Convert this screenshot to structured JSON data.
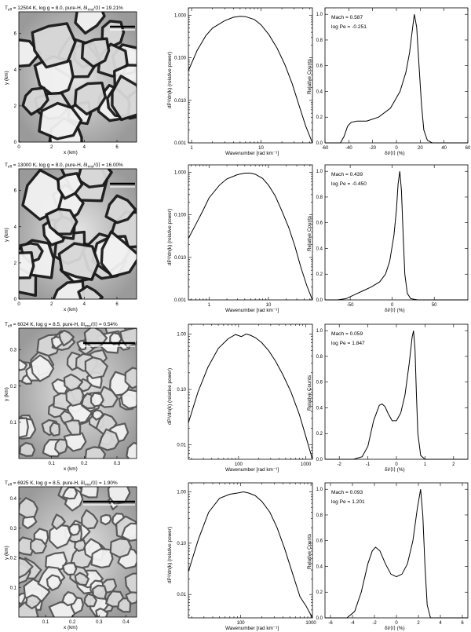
{
  "rows": [
    {
      "image": {
        "title_main": "T",
        "title_sub": "eff",
        "title_rest": " = 12504 K, log g = 8.0, pure-H, δI",
        "title_sub2": "rms",
        "title_end": "/⟨I⟩ = 19.21%",
        "xlabel": "x (km)",
        "ylabel": "y (km)",
        "x_ticks": [
          "0",
          "2",
          "4",
          "6"
        ],
        "y_ticks": [
          "0",
          "2",
          "4",
          "6"
        ]
      },
      "spectrum": {
        "ylabel": "dP²/dn(k) (relative power)",
        "xlabel": "Wavenumber [rad km⁻¹]",
        "y_ticks": [
          "0.001",
          "0.010",
          "0.100",
          "1.000"
        ],
        "x_ticks": [
          "1",
          "10"
        ]
      },
      "histogram": {
        "ylabel": "Relative Counts",
        "xlabel": "δI/⟨I⟩ (%)",
        "mach": "Mach = 0.587",
        "logpe": "log Pe = -0.251",
        "x_ticks": [
          "-60",
          "-40",
          "-20",
          "0",
          "20",
          "40",
          "60"
        ],
        "y_ticks": [
          "0.0",
          "0.2",
          "0.4",
          "0.6",
          "0.8",
          "1.0"
        ]
      }
    },
    {
      "image": {
        "title_main": "T",
        "title_sub": "eff",
        "title_rest": " = 13000 K, log g = 8.0, pure-H, δI",
        "title_sub2": "rms",
        "title_end": "/⟨I⟩ = 16.00%",
        "xlabel": "x (km)",
        "ylabel": "y (km)",
        "x_ticks": [
          "0",
          "2",
          "4",
          "6"
        ],
        "y_ticks": [
          "0",
          "2",
          "4",
          "6"
        ]
      },
      "spectrum": {
        "ylabel": "dP²/dn(k) (relative power)",
        "xlabel": "Wavenumber [rad km⁻¹]",
        "y_ticks": [
          "0.001",
          "0.010",
          "0.100",
          "1.000"
        ],
        "x_ticks": [
          "1",
          "10"
        ]
      },
      "histogram": {
        "ylabel": "Relative Counts",
        "xlabel": "δI/⟨I⟩ (%)",
        "mach": "Mach = 0.439",
        "logpe": "log Pe = -0.450",
        "x_ticks": [
          "-50",
          "0",
          "50"
        ],
        "y_ticks": [
          "0.0",
          "0.2",
          "0.4",
          "0.6",
          "0.8",
          "1.0"
        ]
      }
    },
    {
      "image": {
        "title_main": "T",
        "title_sub": "eff",
        "title_rest": " = 6024 K, log g = 8.5, pure-H, δI",
        "title_sub2": "rms",
        "title_end": "/⟨I⟩ = 0.54%",
        "xlabel": "x (km)",
        "ylabel": "y (km)",
        "x_ticks": [
          "0.1",
          "0.2",
          "0.3"
        ],
        "y_ticks": [
          "0.1",
          "0.2",
          "0.3"
        ]
      },
      "spectrum": {
        "ylabel": "dP²/dn(k) (relative power)",
        "xlabel": "Wavenumber [rad km⁻¹]",
        "y_ticks": [
          "0.01",
          "0.10",
          "1.00"
        ],
        "x_ticks": [
          "100",
          "1000"
        ]
      },
      "histogram": {
        "ylabel": "Relative Counts",
        "xlabel": "δI/⟨I⟩ (%)",
        "mach": "Mach = 0.059",
        "logpe": "log Pe = 1.847",
        "x_ticks": [
          "-2",
          "-1",
          "0",
          "1",
          "2"
        ],
        "y_ticks": [
          "0.0",
          "0.2",
          "0.4",
          "0.6",
          "0.8",
          "1.0"
        ]
      }
    },
    {
      "image": {
        "title_main": "T",
        "title_sub": "eff",
        "title_rest": " = 6925 K, log g = 8.5, pure-H, δI",
        "title_sub2": "rms",
        "title_end": "/⟨I⟩ = 1.90%",
        "xlabel": "x (km)",
        "ylabel": "y (km)",
        "x_ticks": [
          "0.1",
          "0.2",
          "0.3",
          "0.4"
        ],
        "y_ticks": [
          "0.1",
          "0.2",
          "0.3",
          "0.4"
        ]
      },
      "spectrum": {
        "ylabel": "dP²/dn(k) (relative power)",
        "xlabel": "Wavenumber [rad km⁻¹]",
        "y_ticks": [
          "0.01",
          "0.10",
          "1.00"
        ],
        "x_ticks": [
          "100",
          "1000"
        ]
      },
      "histogram": {
        "ylabel": "Relative Counts",
        "xlabel": "δI/⟨I⟩ (%)",
        "mach": "Mach = 0.093",
        "logpe": "log Pe = 1.201",
        "x_ticks": [
          "-6",
          "-4",
          "-2",
          "0",
          "2",
          "4",
          "6"
        ],
        "y_ticks": [
          "0.0",
          "0.2",
          "0.4",
          "0.6",
          "0.8",
          "1.0"
        ]
      }
    }
  ],
  "chart_data": [
    {
      "type": "line",
      "row": 1,
      "panel": "spectrum",
      "yscale": "log",
      "xscale": "log",
      "xlim": [
        0.9,
        55
      ],
      "ylim": [
        0.001,
        1.5
      ],
      "x": [
        0.9,
        1.2,
        1.6,
        2,
        3,
        4,
        5,
        6,
        8,
        10,
        13,
        17,
        22,
        28,
        35,
        44,
        55
      ],
      "y": [
        0.05,
        0.15,
        0.33,
        0.5,
        0.75,
        0.9,
        0.95,
        0.93,
        0.8,
        0.6,
        0.35,
        0.17,
        0.07,
        0.025,
        0.008,
        0.0025,
        0.001
      ]
    },
    {
      "type": "line",
      "row": 1,
      "panel": "histogram",
      "xlim": [
        -60,
        60
      ],
      "ylim": [
        0,
        1.05
      ],
      "x": [
        -60,
        -47,
        -44,
        -41,
        -38,
        -33,
        -25,
        -15,
        -5,
        3,
        8,
        11,
        13,
        15,
        17,
        19,
        21,
        23,
        26,
        30,
        40,
        60
      ],
      "y": [
        0,
        0,
        0.05,
        0.13,
        0.16,
        0.17,
        0.17,
        0.2,
        0.27,
        0.4,
        0.55,
        0.7,
        0.85,
        1.0,
        0.9,
        0.6,
        0.3,
        0.1,
        0.02,
        0,
        0,
        0
      ]
    },
    {
      "type": "line",
      "row": 2,
      "panel": "spectrum",
      "yscale": "log",
      "xscale": "log",
      "xlim": [
        0.45,
        55
      ],
      "ylim": [
        0.001,
        1.5
      ],
      "x": [
        0.45,
        0.6,
        0.8,
        1,
        1.5,
        2,
        3,
        4,
        5,
        6,
        8,
        10,
        13,
        17,
        22,
        28,
        35,
        44,
        55
      ],
      "y": [
        0.028,
        0.06,
        0.13,
        0.25,
        0.5,
        0.7,
        0.88,
        0.96,
        0.96,
        0.9,
        0.72,
        0.5,
        0.28,
        0.12,
        0.05,
        0.018,
        0.006,
        0.0022,
        0.001
      ]
    },
    {
      "type": "line",
      "row": 2,
      "panel": "histogram",
      "xlim": [
        -80,
        90
      ],
      "ylim": [
        0,
        1.05
      ],
      "x": [
        -80,
        -65,
        -55,
        -45,
        -35,
        -25,
        -15,
        -8,
        -3,
        2,
        5,
        7,
        9,
        11,
        13,
        15,
        18,
        22,
        30,
        90
      ],
      "y": [
        0,
        0,
        0.01,
        0.04,
        0.07,
        0.1,
        0.14,
        0.2,
        0.3,
        0.5,
        0.7,
        0.9,
        1.0,
        0.85,
        0.5,
        0.2,
        0.05,
        0.01,
        0,
        0
      ]
    },
    {
      "type": "line",
      "row": 3,
      "panel": "spectrum",
      "yscale": "log",
      "xscale": "log",
      "xlim": [
        18,
        1250
      ],
      "ylim": [
        0.0055,
        1.5
      ],
      "x": [
        18,
        25,
        35,
        50,
        70,
        90,
        110,
        130,
        150,
        180,
        220,
        280,
        350,
        450,
        600,
        800,
        1000,
        1250
      ],
      "y": [
        0.025,
        0.09,
        0.25,
        0.55,
        0.82,
        0.98,
        0.9,
        1.0,
        0.95,
        0.85,
        0.7,
        0.5,
        0.33,
        0.19,
        0.09,
        0.035,
        0.014,
        0.0055
      ]
    },
    {
      "type": "line",
      "row": 3,
      "panel": "histogram",
      "xlim": [
        -2.5,
        2.5
      ],
      "ylim": [
        0,
        1.05
      ],
      "x": [
        -2.5,
        -1.5,
        -1.2,
        -1.0,
        -0.8,
        -0.6,
        -0.5,
        -0.4,
        -0.3,
        -0.15,
        0,
        0.15,
        0.3,
        0.45,
        0.55,
        0.6,
        0.65,
        0.7,
        0.75,
        0.85,
        1.0,
        2.5
      ],
      "y": [
        0,
        0,
        0.02,
        0.1,
        0.3,
        0.42,
        0.43,
        0.41,
        0.36,
        0.3,
        0.3,
        0.36,
        0.5,
        0.75,
        0.95,
        1.0,
        0.85,
        0.5,
        0.2,
        0.03,
        0,
        0
      ]
    },
    {
      "type": "line",
      "row": 4,
      "panel": "spectrum",
      "yscale": "log",
      "xscale": "log",
      "xlim": [
        18,
        1050
      ],
      "ylim": [
        0.0035,
        1.5
      ],
      "x": [
        18,
        25,
        35,
        50,
        70,
        90,
        110,
        130,
        160,
        200,
        260,
        330,
        420,
        550,
        700,
        850,
        1050
      ],
      "y": [
        0.028,
        0.12,
        0.4,
        0.75,
        0.9,
        0.95,
        1.0,
        0.95,
        0.85,
        0.65,
        0.4,
        0.2,
        0.08,
        0.025,
        0.009,
        0.006,
        0.0035
      ]
    },
    {
      "type": "line",
      "row": 4,
      "panel": "histogram",
      "xlim": [
        -6.5,
        6.5
      ],
      "ylim": [
        0,
        1.05
      ],
      "x": [
        -6.5,
        -4.5,
        -3.8,
        -3.2,
        -2.6,
        -2.2,
        -1.9,
        -1.5,
        -1.0,
        -0.5,
        0,
        0.5,
        1.0,
        1.5,
        1.9,
        2.2,
        2.4,
        2.6,
        2.8,
        3.1,
        6.5
      ],
      "y": [
        0,
        0,
        0.05,
        0.2,
        0.42,
        0.52,
        0.55,
        0.52,
        0.42,
        0.34,
        0.32,
        0.34,
        0.42,
        0.6,
        0.85,
        1.0,
        0.8,
        0.4,
        0.1,
        0,
        0
      ]
    }
  ]
}
